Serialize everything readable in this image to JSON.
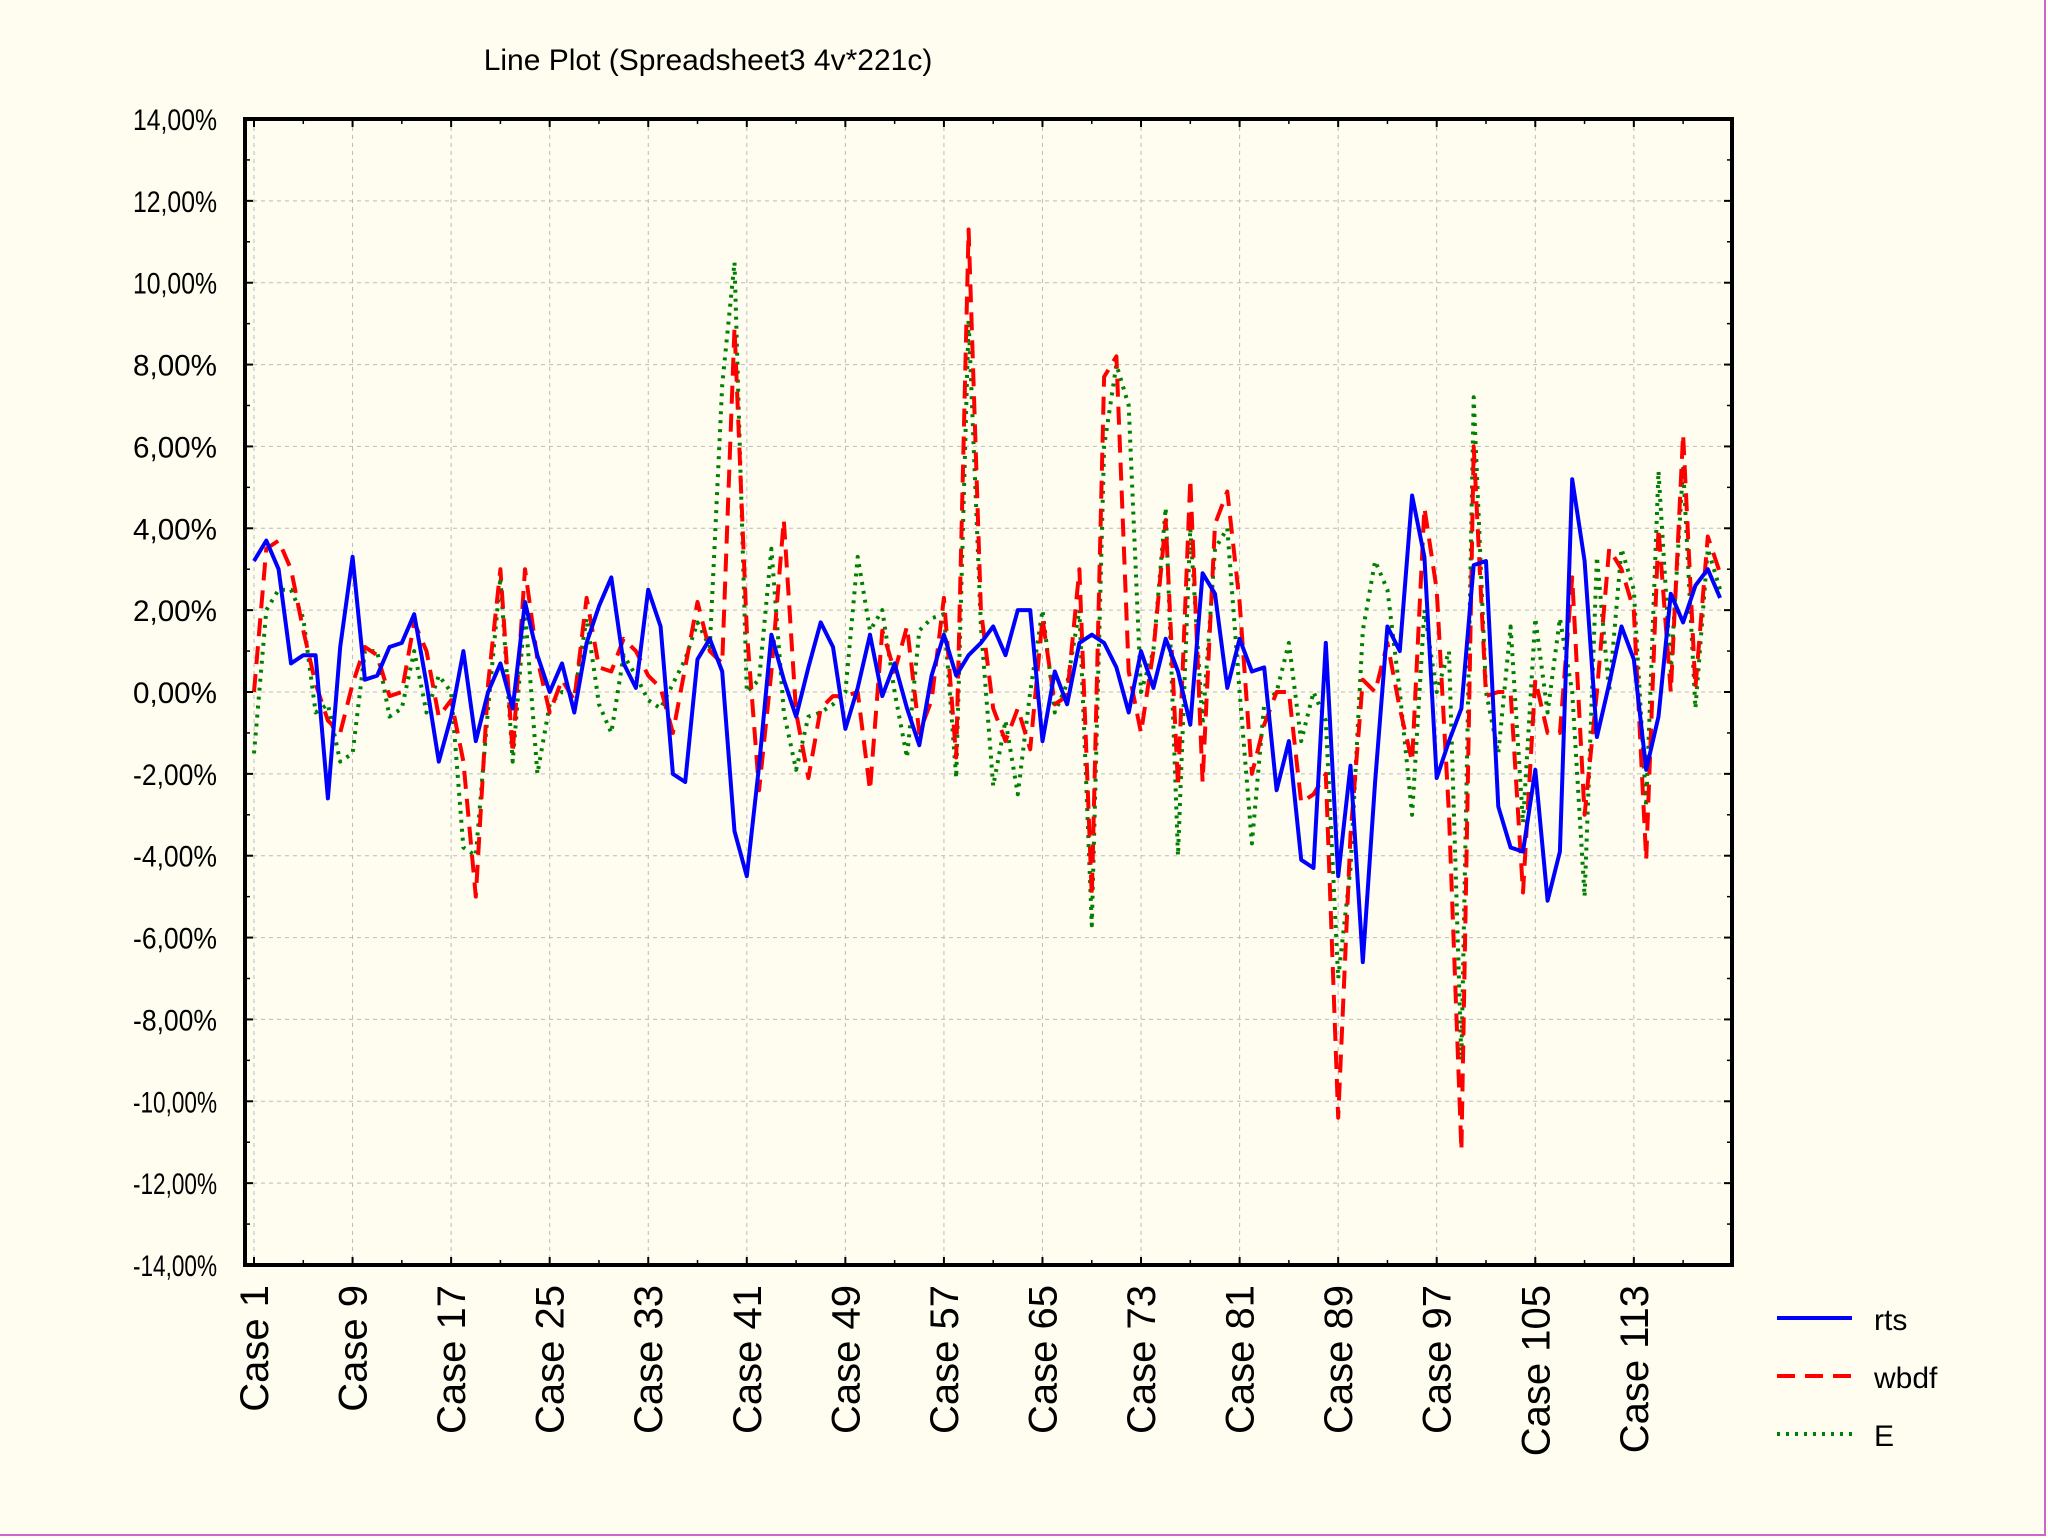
{
  "chart_data": {
    "type": "line",
    "title": "Line Plot (Spreadsheet3 4v*221c)",
    "xlabel": "",
    "ylabel": "",
    "ylim": [
      -0.14,
      0.14
    ],
    "yticks": [
      -0.14,
      -0.12,
      -0.1,
      -0.08,
      -0.06,
      -0.04,
      -0.02,
      0.0,
      0.02,
      0.04,
      0.06,
      0.08,
      0.1,
      0.12,
      0.14
    ],
    "ytick_labels": [
      "-14,00%",
      "-12,00%",
      "-10,00%",
      "-8,00%",
      "-6,00%",
      "-4,00%",
      "-2,00%",
      "0,00%",
      "2,00%",
      "4,00%",
      "6,00%",
      "8,00%",
      "10,00%",
      "12,00%",
      "14,00%"
    ],
    "xtick_labels": [
      "Case 1",
      "Case 9",
      "Case 17",
      "Case 25",
      "Case 33",
      "Case 41",
      "Case 49",
      "Case 57",
      "Case 65",
      "Case 73",
      "Case 81",
      "Case 89",
      "Case 97",
      "Case 105",
      "Case 113"
    ],
    "xtick_positions": [
      1,
      9,
      17,
      25,
      33,
      41,
      49,
      57,
      65,
      73,
      81,
      89,
      97,
      105,
      113
    ],
    "x_count": 120,
    "grid": true,
    "legend_position": "bottom-right",
    "series": [
      {
        "name": "rts",
        "color": "#0000FF",
        "style": "solid",
        "values": [
          0.032,
          0.037,
          0.03,
          0.007,
          0.009,
          0.009,
          -0.026,
          0.011,
          0.033,
          0.003,
          0.004,
          0.011,
          0.012,
          0.019,
          0.002,
          -0.017,
          -0.006,
          0.01,
          -0.012,
          0.0,
          0.007,
          -0.004,
          0.022,
          0.009,
          0.0,
          0.007,
          -0.005,
          0.012,
          0.021,
          0.028,
          0.007,
          0.001,
          0.025,
          0.016,
          -0.02,
          -0.022,
          0.008,
          0.013,
          0.005,
          -0.034,
          -0.045,
          -0.018,
          0.014,
          0.003,
          -0.006,
          0.006,
          0.017,
          0.011,
          -0.009,
          0.001,
          0.014,
          -0.001,
          0.007,
          -0.004,
          -0.013,
          0.004,
          0.014,
          0.004,
          0.009,
          0.012,
          0.016,
          0.009,
          0.02,
          0.02,
          -0.012,
          0.005,
          -0.003,
          0.012,
          0.014,
          0.012,
          0.006,
          -0.005,
          0.01,
          0.001,
          0.013,
          0.005,
          -0.008,
          0.029,
          0.024,
          0.001,
          0.013,
          0.005,
          0.006,
          -0.024,
          -0.012,
          -0.041,
          -0.043,
          0.012,
          -0.045,
          -0.018,
          -0.066,
          -0.022,
          0.016,
          0.01,
          0.048,
          0.033,
          -0.021,
          -0.012,
          -0.004,
          0.031,
          0.032,
          -0.028,
          -0.038,
          -0.039,
          -0.019,
          -0.051,
          -0.039,
          0.052,
          0.032,
          -0.011,
          0.002,
          0.016,
          0.008,
          -0.019,
          -0.006,
          0.024,
          0.017,
          0.026,
          0.03,
          0.023
        ]
      },
      {
        "name": "wbdf",
        "color": "#FF0000",
        "style": "dashed",
        "values": [
          0.0,
          0.035,
          0.037,
          0.03,
          0.015,
          0.002,
          -0.007,
          -0.01,
          0.002,
          0.011,
          0.009,
          -0.001,
          0.0,
          0.017,
          0.01,
          -0.006,
          -0.002,
          -0.017,
          -0.05,
          0.002,
          0.03,
          -0.015,
          0.03,
          0.008,
          -0.005,
          0.003,
          -0.002,
          0.023,
          0.006,
          0.005,
          0.013,
          0.01,
          0.004,
          0.001,
          -0.01,
          0.006,
          0.022,
          0.01,
          0.007,
          0.089,
          0.015,
          -0.024,
          0.005,
          0.042,
          -0.005,
          -0.021,
          -0.004,
          -0.001,
          -0.001,
          0.0,
          -0.024,
          0.015,
          0.005,
          0.016,
          -0.01,
          -0.002,
          0.023,
          -0.016,
          0.113,
          0.02,
          -0.004,
          -0.012,
          -0.004,
          -0.014,
          0.018,
          -0.003,
          -0.001,
          0.03,
          -0.05,
          0.077,
          0.082,
          0.005,
          -0.01,
          0.01,
          0.042,
          -0.023,
          0.052,
          -0.022,
          0.041,
          0.049,
          0.022,
          -0.02,
          -0.008,
          0.0,
          0.0,
          -0.027,
          -0.025,
          -0.02,
          -0.104,
          -0.035,
          0.003,
          0.0,
          0.012,
          -0.004,
          -0.017,
          0.045,
          0.025,
          -0.03,
          -0.112,
          0.06,
          -0.001,
          0.0,
          0.0,
          -0.049,
          0.003,
          -0.01,
          -0.01,
          0.028,
          -0.03,
          0.0,
          0.035,
          0.03,
          0.02,
          -0.041,
          0.04,
          0.0,
          0.063,
          0.001,
          0.038,
          0.029
        ]
      },
      {
        "name": "E",
        "color": "#008000",
        "style": "dotted",
        "values": [
          -0.015,
          0.02,
          0.025,
          0.025,
          0.018,
          -0.005,
          -0.003,
          -0.017,
          -0.015,
          0.01,
          0.01,
          -0.006,
          -0.004,
          0.01,
          -0.005,
          0.004,
          0.0,
          -0.038,
          -0.04,
          -0.004,
          0.028,
          -0.017,
          0.02,
          -0.02,
          -0.003,
          0.0,
          -0.001,
          0.018,
          -0.003,
          -0.01,
          0.009,
          0.004,
          -0.002,
          -0.004,
          0.002,
          0.008,
          0.017,
          0.011,
          0.075,
          0.105,
          0.0,
          0.003,
          0.035,
          -0.005,
          -0.019,
          -0.006,
          -0.005,
          -0.003,
          0.0,
          0.033,
          0.015,
          0.02,
          0.0,
          -0.016,
          0.015,
          0.018,
          0.019,
          -0.021,
          0.091,
          0.016,
          -0.023,
          -0.007,
          -0.025,
          0.0,
          0.02,
          -0.005,
          0.002,
          0.02,
          -0.057,
          0.06,
          0.08,
          0.07,
          0.0,
          0.01,
          0.045,
          -0.04,
          0.04,
          -0.008,
          0.035,
          0.04,
          0.0,
          -0.037,
          -0.003,
          0.0,
          0.012,
          -0.012,
          0.0,
          -0.007,
          -0.07,
          -0.043,
          0.015,
          0.032,
          0.025,
          0.0,
          -0.03,
          0.02,
          0.0,
          0.01,
          -0.09,
          0.072,
          0.0,
          -0.015,
          0.016,
          -0.032,
          0.018,
          -0.005,
          0.018,
          0.0,
          -0.05,
          0.033,
          0.0,
          0.035,
          0.025,
          -0.028,
          0.054,
          0.005,
          0.055,
          -0.004,
          0.035,
          0.025
        ]
      }
    ]
  }
}
